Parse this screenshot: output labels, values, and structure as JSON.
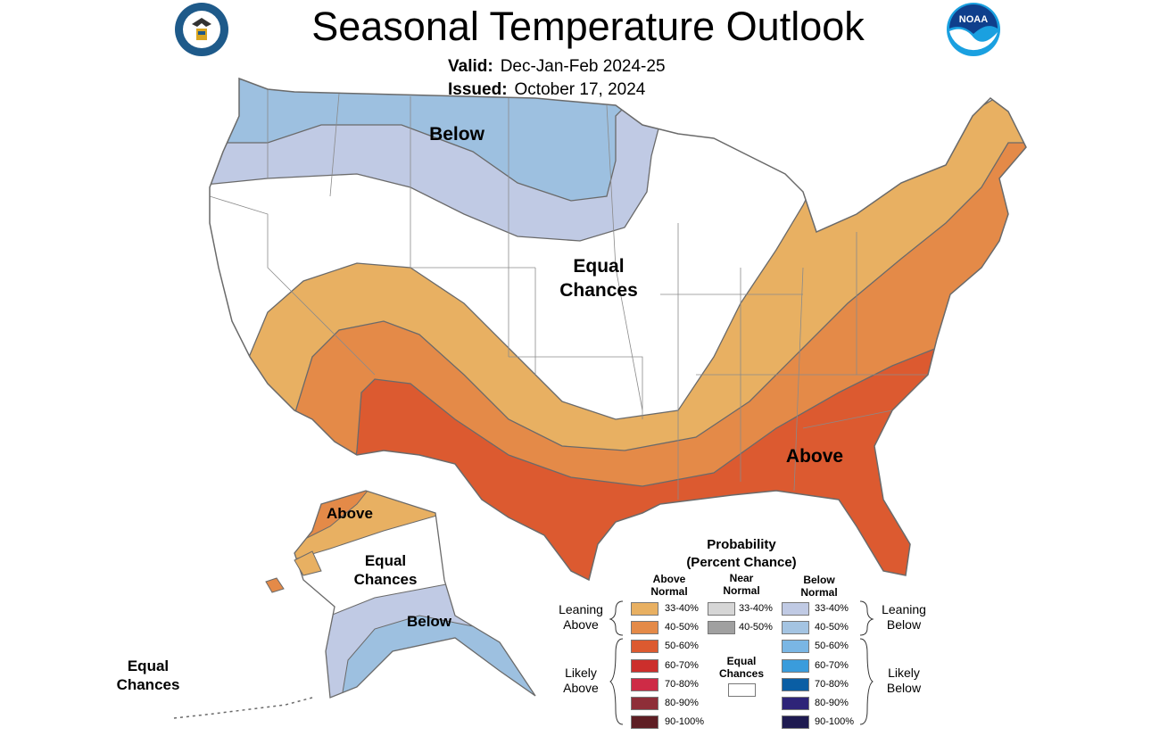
{
  "header": {
    "title": "Seasonal Temperature Outlook",
    "valid_label": "Valid:",
    "valid_value": "Dec-Jan-Feb 2024-25",
    "issued_label": "Issued:",
    "issued_value": "October 17, 2024",
    "left_logo": "department-of-commerce-seal",
    "right_logo": "NOAA"
  },
  "map_labels": {
    "conus_below": "Below",
    "conus_equal_1": "Equal",
    "conus_equal_2": "Chances",
    "conus_above": "Above",
    "ak_above": "Above",
    "ak_equal_1": "Equal",
    "ak_equal_2": "Chances",
    "ak_below": "Below",
    "hi_equal_1": "Equal",
    "hi_equal_2": "Chances"
  },
  "colors": {
    "above_33_40": "#E8B062",
    "above_40_50": "#E48A48",
    "above_50_60": "#DC5A30",
    "below_33_40": "#C0CAE4",
    "below_40_50": "#9DC0E0",
    "border": "#6a6a6a"
  },
  "legend": {
    "title_1": "Probability",
    "title_2": "(Percent Chance)",
    "above_header_1": "Above",
    "above_header_2": "Normal",
    "near_header_1": "Near",
    "near_header_2": "Normal",
    "below_header_1": "Below",
    "below_header_2": "Normal",
    "leaning_above_1": "Leaning",
    "leaning_above_2": "Above",
    "likely_above_1": "Likely",
    "likely_above_2": "Above",
    "leaning_below_1": "Leaning",
    "leaning_below_2": "Below",
    "likely_below_1": "Likely",
    "likely_below_2": "Below",
    "equal_1": "Equal",
    "equal_2": "Chances",
    "above": [
      {
        "label": "33-40%",
        "color": "#E8B062"
      },
      {
        "label": "40-50%",
        "color": "#E48A48"
      },
      {
        "label": "50-60%",
        "color": "#DC5A30"
      },
      {
        "label": "60-70%",
        "color": "#CC2F2C"
      },
      {
        "label": "70-80%",
        "color": "#CE2B46"
      },
      {
        "label": "80-90%",
        "color": "#8E2E38"
      },
      {
        "label": "90-100%",
        "color": "#5E1E24"
      }
    ],
    "near": [
      {
        "label": "33-40%",
        "color": "#D6D6D6"
      },
      {
        "label": "40-50%",
        "color": "#A0A0A0"
      }
    ],
    "below": [
      {
        "label": "33-40%",
        "color": "#C0CAE4"
      },
      {
        "label": "40-50%",
        "color": "#A4C4E2"
      },
      {
        "label": "50-60%",
        "color": "#7AB6E4"
      },
      {
        "label": "60-70%",
        "color": "#3A9CDC"
      },
      {
        "label": "70-80%",
        "color": "#0A5EA4"
      },
      {
        "label": "80-90%",
        "color": "#2E2478"
      },
      {
        "label": "90-100%",
        "color": "#1E1A50"
      }
    ]
  }
}
